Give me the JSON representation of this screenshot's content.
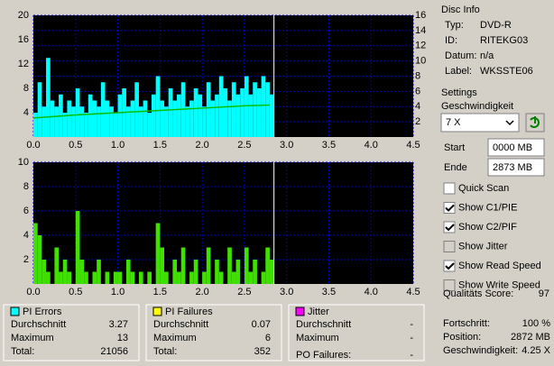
{
  "chart_data": [
    {
      "type": "bar",
      "x": [
        0,
        0.05,
        0.1,
        0.15,
        0.2,
        0.25,
        0.3,
        0.35,
        0.4,
        0.45,
        0.5,
        0.55,
        0.6,
        0.65,
        0.7,
        0.75,
        0.8,
        0.85,
        0.9,
        0.95,
        1,
        1.05,
        1.1,
        1.15,
        1.2,
        1.25,
        1.3,
        1.35,
        1.4,
        1.45,
        1.5,
        1.55,
        1.6,
        1.65,
        1.7,
        1.75,
        1.8,
        1.85,
        1.9,
        1.95,
        2,
        2.05,
        2.1,
        2.15,
        2.2,
        2.25,
        2.3,
        2.35,
        2.4,
        2.45,
        2.5,
        2.55,
        2.6,
        2.65,
        2.7,
        2.75,
        2.8
      ],
      "series": [
        {
          "name": "PI Errors",
          "color": "#00ffff",
          "values": [
            4,
            9,
            5,
            13,
            6,
            5,
            7,
            4,
            6,
            5,
            8,
            5,
            4,
            7,
            6,
            5,
            9,
            6,
            5,
            4,
            7,
            8,
            5,
            6,
            9,
            5,
            6,
            4,
            7,
            10,
            6,
            5,
            8,
            6,
            7,
            9,
            5,
            6,
            8,
            7,
            5,
            9,
            6,
            7,
            10,
            8,
            6,
            9,
            7,
            8,
            10,
            7,
            9,
            8,
            10,
            9,
            7
          ]
        },
        {
          "type": "line",
          "axis": "y2",
          "color": "#00c000",
          "x": [
            0,
            0.5,
            1,
            1.5,
            2,
            2.5,
            2.8
          ],
          "values": [
            2.5,
            2.9,
            3.2,
            3.5,
            3.8,
            4.1,
            4.2
          ]
        }
      ],
      "xlim": [
        0,
        4.5
      ],
      "xticks": [
        {
          "value": 0,
          "label": "0.0"
        },
        0.5,
        {
          "value": 1,
          "label": "1.0"
        },
        1.5,
        {
          "value": 2,
          "label": "2.0"
        },
        2.5,
        {
          "value": 3,
          "label": "3.0"
        },
        3.5,
        {
          "value": 4,
          "label": "4.0"
        },
        4.5
      ],
      "ylim": [
        0,
        20
      ],
      "yticks": [
        4,
        8,
        12,
        16,
        20
      ],
      "y2lim": [
        0,
        16
      ],
      "y2ticks": [
        2,
        4,
        6,
        8,
        10,
        12,
        14,
        16
      ],
      "grid": true
    },
    {
      "type": "bar",
      "x": [
        0,
        0.05,
        0.1,
        0.15,
        0.2,
        0.25,
        0.3,
        0.35,
        0.4,
        0.45,
        0.5,
        0.55,
        0.6,
        0.65,
        0.7,
        0.75,
        0.8,
        0.85,
        0.9,
        0.95,
        1,
        1.05,
        1.1,
        1.15,
        1.2,
        1.25,
        1.3,
        1.35,
        1.4,
        1.45,
        1.5,
        1.55,
        1.6,
        1.65,
        1.7,
        1.75,
        1.8,
        1.85,
        1.9,
        1.95,
        2,
        2.05,
        2.1,
        2.15,
        2.2,
        2.25,
        2.3,
        2.35,
        2.4,
        2.45,
        2.5,
        2.55,
        2.6,
        2.65,
        2.7,
        2.75,
        2.8
      ],
      "series": [
        {
          "name": "PI Failures",
          "color": "#40e000",
          "values": [
            5,
            4,
            2,
            1,
            0,
            3,
            1,
            2,
            1,
            0,
            6,
            2,
            1,
            0,
            1,
            2,
            0,
            1,
            0,
            1,
            1,
            0,
            2,
            1,
            0,
            1,
            0,
            1,
            0,
            5,
            3,
            1,
            0,
            2,
            1,
            3,
            0,
            1,
            2,
            0,
            1,
            3,
            0,
            2,
            1,
            0,
            3,
            1,
            2,
            0,
            3,
            1,
            2,
            0,
            1,
            3,
            2
          ]
        }
      ],
      "xlim": [
        0,
        4.5
      ],
      "xticks": [
        {
          "value": 0,
          "label": "0.0"
        },
        0.5,
        {
          "value": 1,
          "label": "1.0"
        },
        1.5,
        {
          "value": 2,
          "label": "2.0"
        },
        2.5,
        {
          "value": 3,
          "label": "3.0"
        },
        3.5,
        {
          "value": 4,
          "label": "4.0"
        },
        4.5
      ],
      "ylim": [
        0,
        10
      ],
      "yticks": [
        2,
        4,
        6,
        8,
        10
      ],
      "grid": true
    }
  ],
  "disc_info": {
    "title": "Disc Info",
    "rows": [
      [
        "Typ:",
        "DVD-R"
      ],
      [
        "ID:",
        "RITEKG03"
      ],
      [
        "Datum:",
        "n/a"
      ],
      [
        "Label:",
        "WKSSTE06"
      ]
    ]
  },
  "settings": {
    "title": "Settings",
    "speed_label": "Geschwindigkeit",
    "speed": "7 X",
    "start_label": "Start",
    "start": "0000 MB",
    "end_label": "Ende",
    "end": "2873 MB",
    "checks": [
      [
        "Quick Scan",
        false,
        true
      ],
      [
        "Show C1/PIE",
        true,
        true
      ],
      [
        "Show C2/PIF",
        true,
        true
      ],
      [
        "Show Jitter",
        false,
        false
      ],
      [
        "Show Read Speed",
        true,
        true
      ],
      [
        "Show Write Speed",
        false,
        false
      ]
    ],
    "score_label": "Qualitäts Score:",
    "score": "97"
  },
  "progress": [
    [
      "Fortschritt:",
      "100 %"
    ],
    [
      "Position:",
      "2872 MB"
    ],
    [
      "Geschwindigkeit:",
      "4.25 X"
    ]
  ],
  "stats": [
    {
      "title": "PI Errors",
      "color": "#00ffff",
      "rows": [
        [
          "Durchschnitt",
          "3.27"
        ],
        [
          "Maximum",
          "13"
        ],
        [
          "Total:",
          "21056"
        ]
      ]
    },
    {
      "title": "PI Failures",
      "color": "#ffff00",
      "rows": [
        [
          "Durchschnitt",
          "0.07"
        ],
        [
          "Maximum",
          "6"
        ],
        [
          "Total:",
          "352"
        ]
      ]
    },
    {
      "title": "Jitter",
      "color": "#ff00ff",
      "rows": [
        [
          "Durchschnitt",
          "-"
        ],
        [
          "Maximum",
          "-"
        ]
      ],
      "extra": [
        "PO Failures:",
        "-"
      ]
    }
  ]
}
